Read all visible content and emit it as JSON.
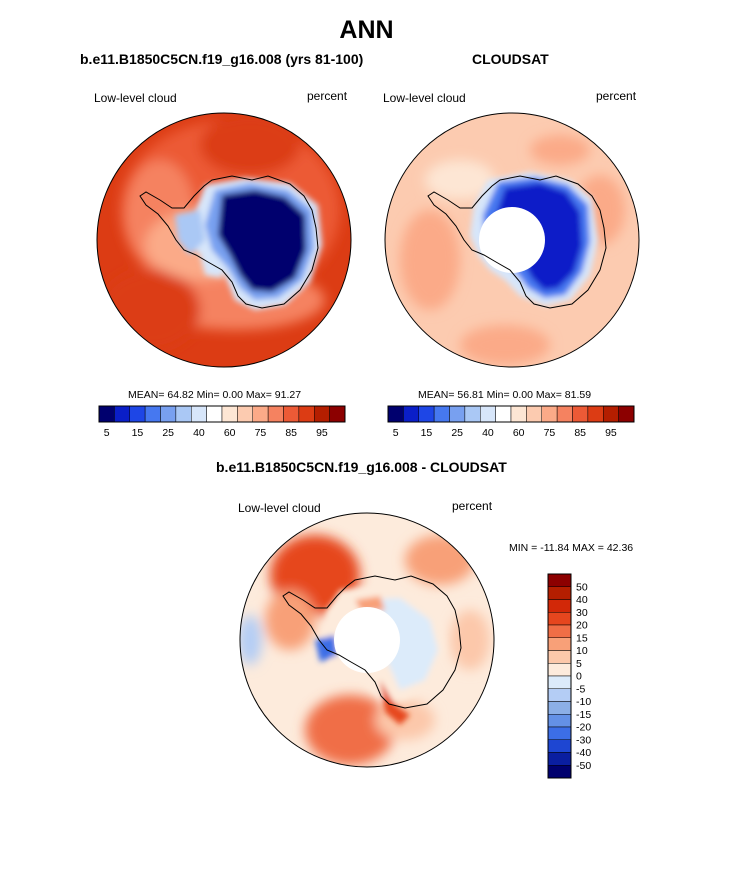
{
  "figure": {
    "title": "ANN",
    "bottom_title": "b.e11.B1850C5CN.f19_g16.008 - CLOUDSAT"
  },
  "colors": {
    "land_outline": "#000000",
    "background": "#ffffff"
  },
  "chart_data": [
    {
      "type": "heatmap",
      "projection": "south-polar-stereographic",
      "title": "b.e11.B1850C5CN.f19_g16.008 (yrs 81-100)",
      "left_label": "Low-level cloud",
      "right_label": "percent",
      "stats_text": "MEAN=  64.82  Min=    0.00  Max=  91.27",
      "stats": {
        "mean": 64.82,
        "min": 0.0,
        "max": 91.27
      },
      "colorbar": {
        "orientation": "horizontal",
        "tick_labels": [
          "5",
          "15",
          "25",
          "40",
          "60",
          "75",
          "85",
          "95"
        ],
        "colors": [
          "#00006e",
          "#0a1ec8",
          "#1e46e6",
          "#4678f0",
          "#78a0f0",
          "#aac8f5",
          "#d7e6fa",
          "#ffffff",
          "#fde6d4",
          "#fccbb0",
          "#fbaa88",
          "#f58260",
          "#ec5a36",
          "#dc3c14",
          "#b41e00",
          "#8c0000"
        ]
      },
      "polar_cap": false
    },
    {
      "type": "heatmap",
      "projection": "south-polar-stereographic",
      "title": "CLOUDSAT",
      "left_label": "Low-level cloud",
      "right_label": "percent",
      "stats_text": "MEAN=  56.81  Min=    0.00  Max=  81.59",
      "stats": {
        "mean": 56.81,
        "min": 0.0,
        "max": 81.59
      },
      "colorbar": {
        "orientation": "horizontal",
        "tick_labels": [
          "5",
          "15",
          "25",
          "40",
          "60",
          "75",
          "85",
          "95"
        ],
        "colors": [
          "#00006e",
          "#0a1ec8",
          "#1e46e6",
          "#4678f0",
          "#78a0f0",
          "#aac8f5",
          "#d7e6fa",
          "#ffffff",
          "#fde6d4",
          "#fccbb0",
          "#fbaa88",
          "#f58260",
          "#ec5a36",
          "#dc3c14",
          "#b41e00",
          "#8c0000"
        ]
      },
      "polar_cap": true
    },
    {
      "type": "heatmap",
      "projection": "south-polar-stereographic",
      "title": "b.e11.B1850C5CN.f19_g16.008 - CLOUDSAT",
      "left_label": "Low-level cloud",
      "right_label": "percent",
      "stats_text": "MIN = -11.84  MAX =  42.36",
      "stats": {
        "min": -11.84,
        "max": 42.36
      },
      "colorbar": {
        "orientation": "vertical",
        "tick_labels": [
          "50",
          "40",
          "30",
          "20",
          "15",
          "10",
          "5",
          "0",
          "-5",
          "-10",
          "-15",
          "-20",
          "-30",
          "-40",
          "-50"
        ],
        "colors": [
          "#8c0000",
          "#b41e00",
          "#d22808",
          "#e6461e",
          "#f06e46",
          "#f8a078",
          "#fcc8aa",
          "#fdebdc",
          "#dcebfa",
          "#b4cdf5",
          "#8cafe6",
          "#6491e6",
          "#3c6ee6",
          "#1e46d2",
          "#0a1ea0",
          "#00006e"
        ]
      },
      "polar_cap": true
    }
  ]
}
